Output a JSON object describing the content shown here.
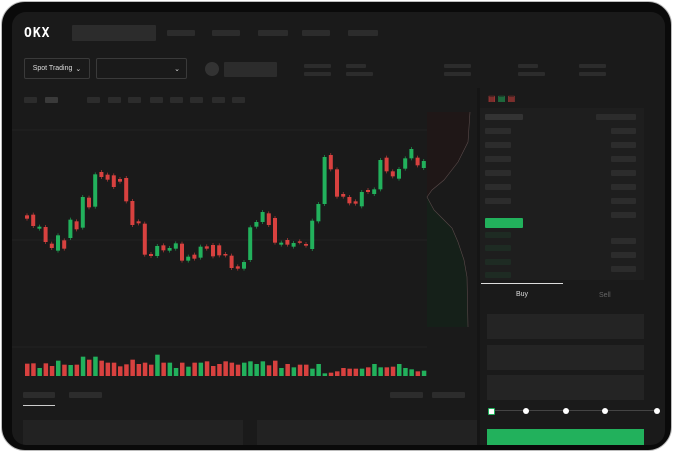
{
  "header": {
    "logo": "OKX"
  },
  "toolbar": {
    "mode_label": "Spot Trading",
    "mode_icon": "chevron-down-icon",
    "pair_icon": "chevron-down-icon"
  },
  "order_form": {
    "tabs": [
      {
        "label": "Buy",
        "active": true
      },
      {
        "label": "Sell",
        "active": false
      }
    ],
    "slider_level": 0
  },
  "colors": {
    "up": "#22b15c",
    "down": "#d8413f",
    "background": "#1a1a1a",
    "accent": "#22b15c"
  },
  "chart_data": {
    "type": "candlestick",
    "candles": [
      [
        170,
        160
      ],
      [
        172,
        138
      ],
      [
        130,
        136
      ],
      [
        135,
        90
      ],
      [
        85,
        72
      ],
      [
        64,
        110
      ],
      [
        95,
        70
      ],
      [
        102,
        157
      ],
      [
        152,
        128
      ],
      [
        133,
        225
      ],
      [
        223,
        194
      ],
      [
        196,
        293
      ],
      [
        300,
        285
      ],
      [
        292,
        277
      ],
      [
        290,
        255
      ],
      [
        279,
        271
      ],
      [
        282,
        212
      ],
      [
        213,
        141
      ],
      [
        152,
        146
      ],
      [
        145,
        52
      ],
      [
        54,
        48
      ],
      [
        48,
        78
      ],
      [
        80,
        65
      ],
      [
        64,
        72
      ],
      [
        70,
        86
      ],
      [
        85,
        34
      ],
      [
        34,
        46
      ],
      [
        52,
        40
      ],
      [
        43,
        76
      ],
      [
        77,
        70
      ],
      [
        81,
        47
      ],
      [
        80,
        50
      ],
      [
        54,
        50
      ],
      [
        49,
        12
      ],
      [
        17,
        10
      ],
      [
        10,
        30
      ],
      [
        36,
        134
      ],
      [
        136,
        150
      ],
      [
        150,
        180
      ],
      [
        176,
        141
      ],
      [
        162,
        88
      ],
      [
        82,
        88
      ],
      [
        96,
        82
      ],
      [
        76,
        87
      ],
      [
        92,
        89
      ],
      [
        84,
        79
      ],
      [
        69,
        154
      ],
      [
        152,
        204
      ],
      [
        204,
        345
      ],
      [
        351,
        308
      ],
      [
        308,
        226
      ],
      [
        234,
        226
      ],
      [
        225,
        206
      ],
      [
        212,
        205
      ],
      [
        197,
        240
      ],
      [
        246,
        240
      ],
      [
        234,
        248
      ],
      [
        248,
        336
      ],
      [
        343,
        302
      ],
      [
        302,
        287
      ],
      [
        280,
        309
      ],
      [
        310,
        341
      ],
      [
        341,
        369
      ],
      [
        343,
        320
      ],
      [
        312,
        333
      ]
    ],
    "volume": [
      37,
      38,
      24,
      38,
      30,
      46,
      34,
      33,
      34,
      58,
      49,
      58,
      46,
      40,
      40,
      29,
      35,
      49,
      36,
      40,
      34,
      64,
      40,
      40,
      24,
      40,
      28,
      40,
      40,
      44,
      30,
      36,
      44,
      40,
      34,
      40,
      44,
      36,
      44,
      32,
      46,
      24,
      36,
      26,
      34,
      34,
      22,
      36,
      8,
      10,
      14,
      24,
      22,
      22,
      22,
      26,
      36,
      26,
      26,
      28,
      36,
      24,
      20,
      14,
      16
    ]
  }
}
